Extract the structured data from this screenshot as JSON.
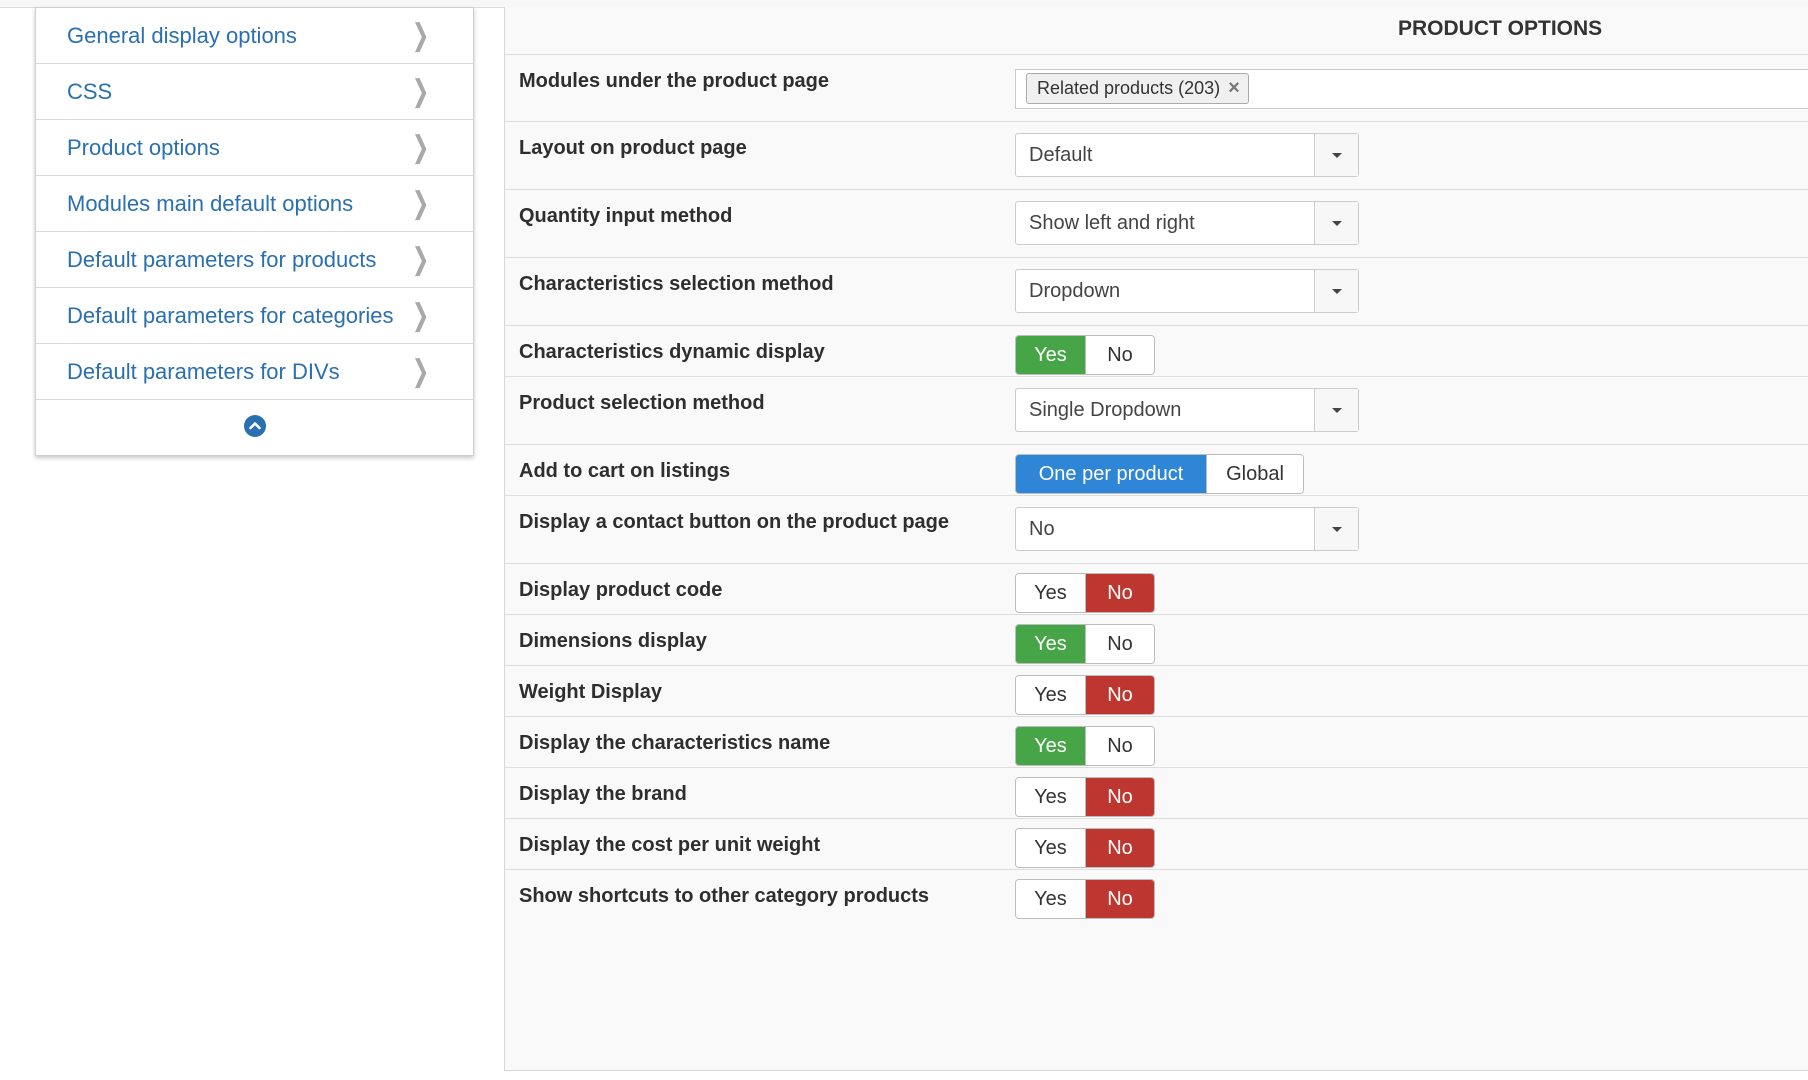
{
  "colors": {
    "link": "#2a6fb0",
    "yes_on": "#46a546",
    "no_on": "#bd362f",
    "choice_on": "#2f86d6"
  },
  "sidebar": {
    "items": [
      {
        "label": "General display options",
        "icon": "chevron-right-icon"
      },
      {
        "label": "CSS",
        "icon": "chevron-right-icon"
      },
      {
        "label": "Product options",
        "icon": "chevron-right-icon"
      },
      {
        "label": "Modules main default options",
        "icon": "chevron-right-icon"
      },
      {
        "label": "Default parameters for products",
        "icon": "chevron-right-icon"
      },
      {
        "label": "Default parameters for categories",
        "icon": "chevron-right-icon"
      },
      {
        "label": "Default parameters for DIVs",
        "icon": "chevron-right-icon"
      }
    ],
    "footer_icon": "chevron-up-circle-icon"
  },
  "panel": {
    "title": "PRODUCT OPTIONS",
    "rows": {
      "modules": {
        "label": "Modules under the product page",
        "tag": "Related products (203)",
        "tag_remove": "×"
      },
      "layout": {
        "label": "Layout on product page",
        "value": "Default"
      },
      "quantity": {
        "label": "Quantity input method",
        "value": "Show left and right"
      },
      "char_method": {
        "label": "Characteristics selection method",
        "value": "Dropdown"
      },
      "char_dynamic": {
        "label": "Characteristics dynamic display",
        "yes": "Yes",
        "no": "No",
        "selected": "Yes"
      },
      "product_sel": {
        "label": "Product selection method",
        "value": "Single Dropdown"
      },
      "add_cart": {
        "label": "Add to cart on listings",
        "option1": "One per product",
        "option2": "Global",
        "selected": "One per product"
      },
      "contact_btn": {
        "label": "Display a contact button on the product page",
        "value": "No"
      },
      "product_code": {
        "label": "Display product code",
        "yes": "Yes",
        "no": "No",
        "selected": "No"
      },
      "dimensions": {
        "label": "Dimensions display",
        "yes": "Yes",
        "no": "No",
        "selected": "Yes"
      },
      "weight": {
        "label": "Weight Display",
        "yes": "Yes",
        "no": "No",
        "selected": "No"
      },
      "char_name": {
        "label": "Display the characteristics name",
        "yes": "Yes",
        "no": "No",
        "selected": "Yes"
      },
      "brand": {
        "label": "Display the brand",
        "yes": "Yes",
        "no": "No",
        "selected": "No"
      },
      "cost_unit": {
        "label": "Display the cost per unit weight",
        "yes": "Yes",
        "no": "No",
        "selected": "No"
      },
      "shortcuts": {
        "label": "Show shortcuts to other category products",
        "yes": "Yes",
        "no": "No",
        "selected": "No"
      }
    }
  }
}
